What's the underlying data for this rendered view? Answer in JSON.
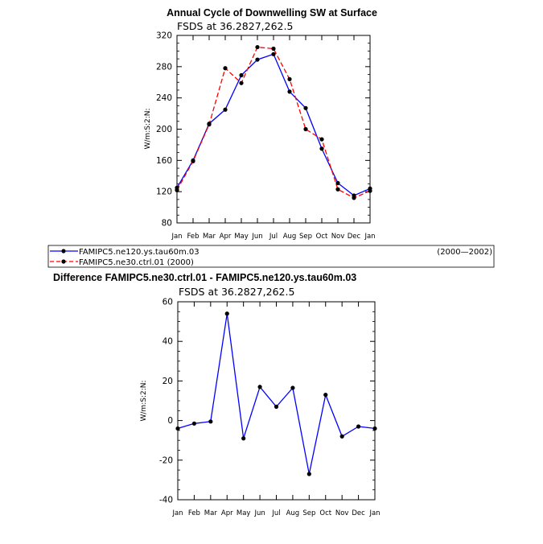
{
  "chart_data": [
    {
      "type": "line",
      "title": "Annual Cycle of Downwelling SW at Surface",
      "subtitle": "FSDS at 36.2827,262.5",
      "xlabel": "",
      "ylabel": "W/m:S:2:N:",
      "categories": [
        "Jan",
        "Feb",
        "Mar",
        "Apr",
        "May",
        "Jun",
        "Jul",
        "Aug",
        "Sep",
        "Oct",
        "Nov",
        "Dec",
        "Jan"
      ],
      "ylim": [
        80,
        320
      ],
      "yticks": [
        80,
        120,
        160,
        200,
        240,
        280,
        320
      ],
      "series": [
        {
          "name": "FAMIPC5.ne120.ys.tau60m.03",
          "values": [
            125,
            160,
            207,
            225,
            269,
            289,
            296,
            248,
            227,
            175,
            131,
            115,
            124
          ],
          "color": "#0000ff",
          "dash": "solid"
        },
        {
          "name": "FAMIPC5.ne30.ctrl.01 (2000)",
          "values": [
            122,
            159,
            206,
            278,
            259,
            305,
            303,
            264,
            200,
            187,
            123,
            112,
            121
          ],
          "color": "#ff0000",
          "dash": "dashed"
        }
      ],
      "legend": {
        "placement": "bottom",
        "entries": [
          "FAMIPC5.ne120.ys.tau60m.03",
          "FAMIPC5.ne30.ctrl.01 (2000)"
        ],
        "period": "(2000—2002)"
      }
    },
    {
      "type": "line",
      "title": "Difference FAMIPC5.ne30.ctrl.01 - FAMIPC5.ne120.ys.tau60m.03",
      "subtitle": "FSDS at 36.2827,262.5",
      "xlabel": "",
      "ylabel": "W/m:S:2:N:",
      "categories": [
        "Jan",
        "Feb",
        "Mar",
        "Apr",
        "May",
        "Jun",
        "Jul",
        "Aug",
        "Sep",
        "Oct",
        "Nov",
        "Dec",
        "Jan"
      ],
      "ylim": [
        -40,
        60
      ],
      "yticks": [
        -40,
        -20,
        0,
        20,
        40,
        60
      ],
      "series": [
        {
          "name": "",
          "values": [
            -4,
            -1.5,
            -0.5,
            54,
            -9,
            17,
            7,
            16.5,
            -27,
            13,
            -8,
            -3,
            -4
          ],
          "color": "#0000ff",
          "dash": "solid"
        }
      ]
    }
  ]
}
